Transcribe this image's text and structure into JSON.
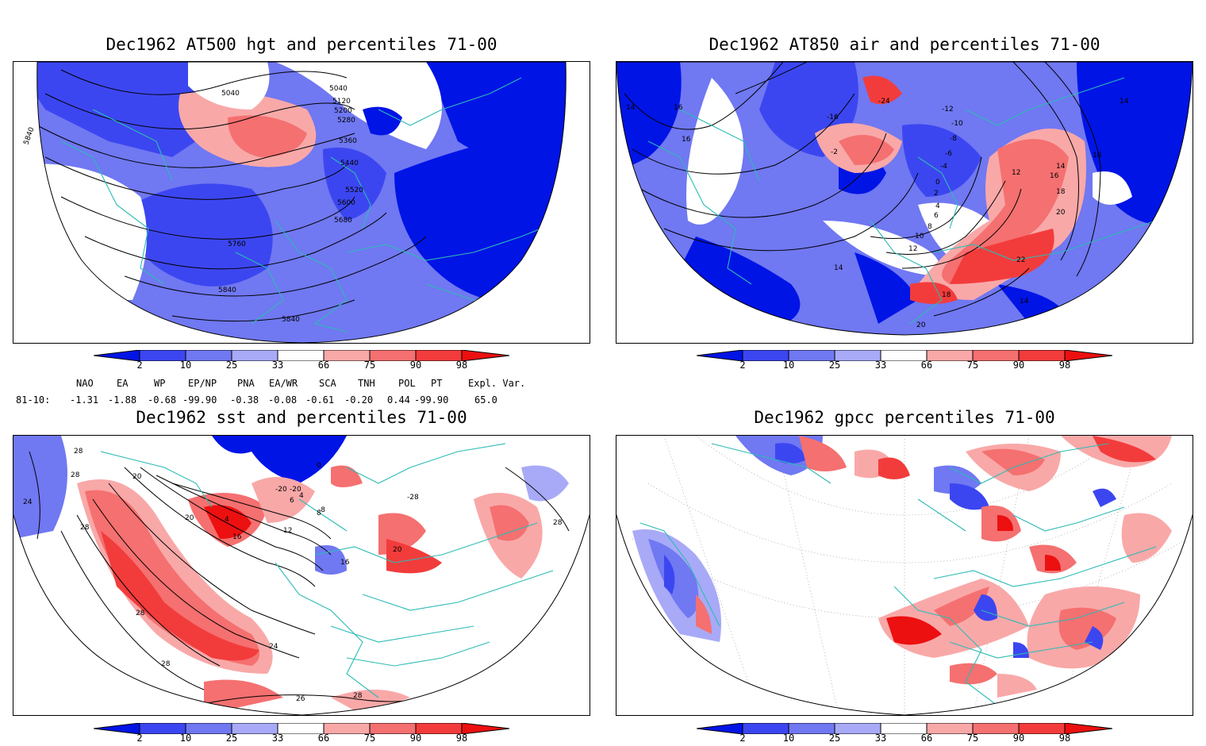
{
  "panels": [
    {
      "title": "Dec1962 AT500 hgt and percentiles 71-00",
      "contour_labels": [
        "5040",
        "5040",
        "5120",
        "5200",
        "5280",
        "5360",
        "5440",
        "5520",
        "5600",
        "5680",
        "5760",
        "5840",
        "5840",
        "5840"
      ]
    },
    {
      "title": "Dec1962 AT850 air and percentiles 71-00",
      "contour_labels": [
        "14",
        "16",
        "16",
        "-24",
        "-16",
        "-2",
        "-12",
        "-10",
        "-8",
        "-6",
        "-4",
        "0",
        "2",
        "4",
        "6",
        "8",
        "10",
        "12",
        "14",
        "14",
        "16",
        "18",
        "20",
        "22",
        "14",
        "14",
        "18",
        "20",
        "16",
        "12"
      ]
    },
    {
      "title": "Dec1962 sst and percentiles 71-00",
      "contour_labels": [
        "28",
        "28",
        "24",
        "20",
        "20",
        "12",
        "4",
        "16",
        "8",
        "0",
        "-20",
        "6",
        "4",
        "28",
        "16",
        "20",
        "28",
        "24",
        "28",
        "28",
        "28",
        "26",
        "-28",
        "-20",
        "-8"
      ]
    },
    {
      "title": "Dec1962 gpcc percentiles 71-00",
      "contour_labels": []
    }
  ],
  "colorbar": {
    "labels": [
      "2",
      "10",
      "25",
      "33",
      "66",
      "75",
      "90",
      "98"
    ],
    "colors": {
      "b1": "#0014e6",
      "b2": "#3c46f0",
      "b3": "#7078f2",
      "b4": "#a8aaf7",
      "r1": "#f9a8a8",
      "r2": "#f57070",
      "r3": "#f23c3c",
      "r4": "#ec1010"
    }
  },
  "indices": {
    "header": [
      "NAO",
      "EA",
      "WP",
      "EP/NP",
      "PNA",
      "EA/WR",
      "SCA",
      "TNH",
      "POL",
      "PT",
      "Expl. Var."
    ],
    "row_label": "81-10:",
    "values": [
      "-1.31",
      "-1.88",
      "-0.68",
      "-99.90",
      "-0.38",
      "-0.08",
      "-0.61",
      "-0.20",
      "0.44",
      "-99.90",
      "65.0"
    ]
  }
}
